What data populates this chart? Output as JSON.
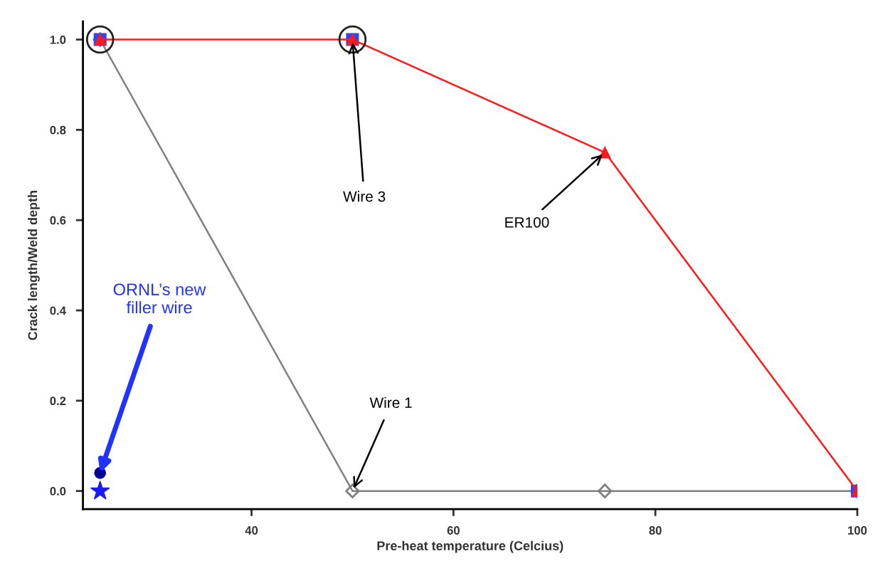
{
  "chart_data": {
    "type": "line",
    "xlabel": "Pre-heat temperature (Celcius)",
    "ylabel": "Crack length/Weld depth",
    "xlim": [
      23.3,
      100
    ],
    "xticks": [
      40,
      60,
      80,
      100
    ],
    "ylim": [
      -0.04,
      1.04
    ],
    "yticks": [
      {
        "value": 0,
        "label": "0.0"
      },
      0.2,
      0.4,
      0.6,
      0.8,
      {
        "value": 1,
        "label": "1.0"
      }
    ],
    "grid": false,
    "line_style": "solid",
    "series": [
      {
        "color": "#808080",
        "marker": "diamond",
        "x": [
          25,
          50,
          75,
          100
        ],
        "values": [
          1,
          0,
          0,
          0
        ]
      },
      {
        "type": "scatter",
        "color": "#3344ee",
        "marker": "square",
        "x": [
          25,
          50,
          100
        ],
        "values": [
          1,
          1,
          0
        ]
      },
      {
        "color": "#ff1a1a",
        "marker": "triangle",
        "x": [
          25,
          50,
          75,
          100
        ],
        "values": [
          1,
          1,
          0.75,
          0
        ]
      },
      {
        "type": "scatter",
        "color": "#1a1aff",
        "marker": "star",
        "x": [
          25
        ],
        "values": [
          0
        ]
      },
      {
        "type": "scatter",
        "color": "#000099",
        "marker": "circle",
        "x": [
          25
        ],
        "values": [
          0.04
        ]
      }
    ],
    "annotations": [
      {
        "text": "Wire 3",
        "x": 50,
        "y": 1
      },
      {
        "text": "ER100",
        "x": 75,
        "y": 0.75
      },
      {
        "text": "Wire 1",
        "x": 50,
        "y": 0
      },
      {
        "text": "ORNL’s new filler wire",
        "x": 25,
        "y": 0.04
      }
    ]
  }
}
